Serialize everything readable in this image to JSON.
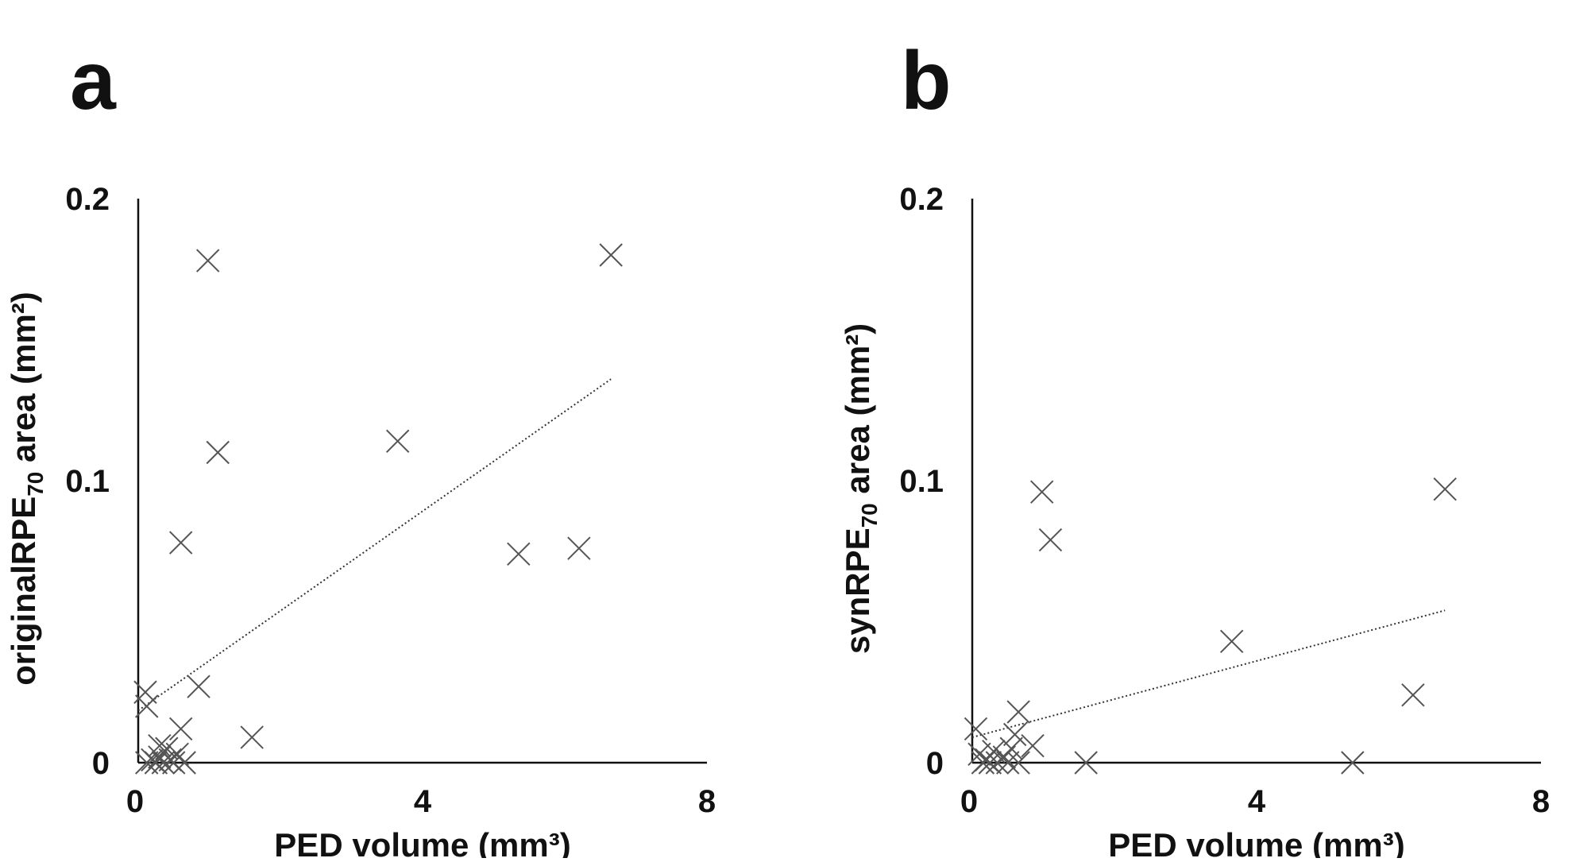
{
  "panels": [
    {
      "letter": "a",
      "chart_data": {
        "type": "scatter",
        "xlabel": "PED volume (mm³)",
        "ylabel_main": "originalRPE",
        "ylabel_sub": "70",
        "ylabel_rest": " area (mm²)",
        "xlim": [
          0,
          8
        ],
        "ylim": [
          0,
          0.2
        ],
        "xticks": [
          "0",
          "4",
          "8"
        ],
        "xtick_values": [
          0,
          4,
          8
        ],
        "yticks": [
          "0",
          "0.1",
          "0.2"
        ],
        "ytick_values": [
          0,
          0.1,
          0.2
        ],
        "marker": "x",
        "trendline": {
          "style": "dotted",
          "x0": 0.0,
          "y0": 0.0185,
          "x1": 6.65,
          "y1": 0.136
        },
        "points": [
          [
            0.12,
            0.0
          ],
          [
            0.2,
            0.001
          ],
          [
            0.25,
            0.0
          ],
          [
            0.3,
            0.002
          ],
          [
            0.35,
            0.0
          ],
          [
            0.4,
            0.005
          ],
          [
            0.45,
            0.001
          ],
          [
            0.5,
            0.0
          ],
          [
            0.55,
            0.003
          ],
          [
            0.65,
            0.0
          ],
          [
            0.1,
            0.025
          ],
          [
            0.12,
            0.02
          ],
          [
            0.3,
            0.006
          ],
          [
            0.6,
            0.012
          ],
          [
            0.85,
            0.027
          ],
          [
            0.6,
            0.078
          ],
          [
            0.98,
            0.178
          ],
          [
            1.12,
            0.11
          ],
          [
            1.6,
            0.009
          ],
          [
            3.65,
            0.114
          ],
          [
            5.35,
            0.074
          ],
          [
            6.2,
            0.076
          ],
          [
            6.65,
            0.18
          ]
        ]
      }
    },
    {
      "letter": "b",
      "chart_data": {
        "type": "scatter",
        "xlabel": "PED volume (mm³)",
        "ylabel_main": "synRPE",
        "ylabel_sub": "70",
        "ylabel_rest": " area (mm²)",
        "xlim": [
          0,
          8
        ],
        "ylim": [
          0,
          0.2
        ],
        "xticks": [
          "0",
          "4",
          "8"
        ],
        "xtick_values": [
          0,
          4,
          8
        ],
        "yticks": [
          "0",
          "0.1",
          "0.2"
        ],
        "ytick_values": [
          0,
          0.1,
          0.2
        ],
        "marker": "x",
        "trendline": {
          "style": "dotted",
          "x0": 0.0,
          "y0": 0.009,
          "x1": 6.65,
          "y1": 0.054
        },
        "points": [
          [
            0.05,
            0.012
          ],
          [
            0.1,
            0.003
          ],
          [
            0.15,
            0.0
          ],
          [
            0.2,
            0.001
          ],
          [
            0.25,
            0.0
          ],
          [
            0.3,
            0.004
          ],
          [
            0.35,
            0.0
          ],
          [
            0.45,
            0.002
          ],
          [
            0.5,
            0.0
          ],
          [
            0.55,
            0.005
          ],
          [
            0.65,
            0.0
          ],
          [
            0.6,
            0.01
          ],
          [
            0.65,
            0.018
          ],
          [
            0.85,
            0.006
          ],
          [
            0.98,
            0.096
          ],
          [
            1.1,
            0.079
          ],
          [
            1.6,
            0.0
          ],
          [
            3.65,
            0.043
          ],
          [
            5.35,
            0.0
          ],
          [
            6.2,
            0.024
          ],
          [
            6.65,
            0.097
          ]
        ]
      }
    }
  ]
}
